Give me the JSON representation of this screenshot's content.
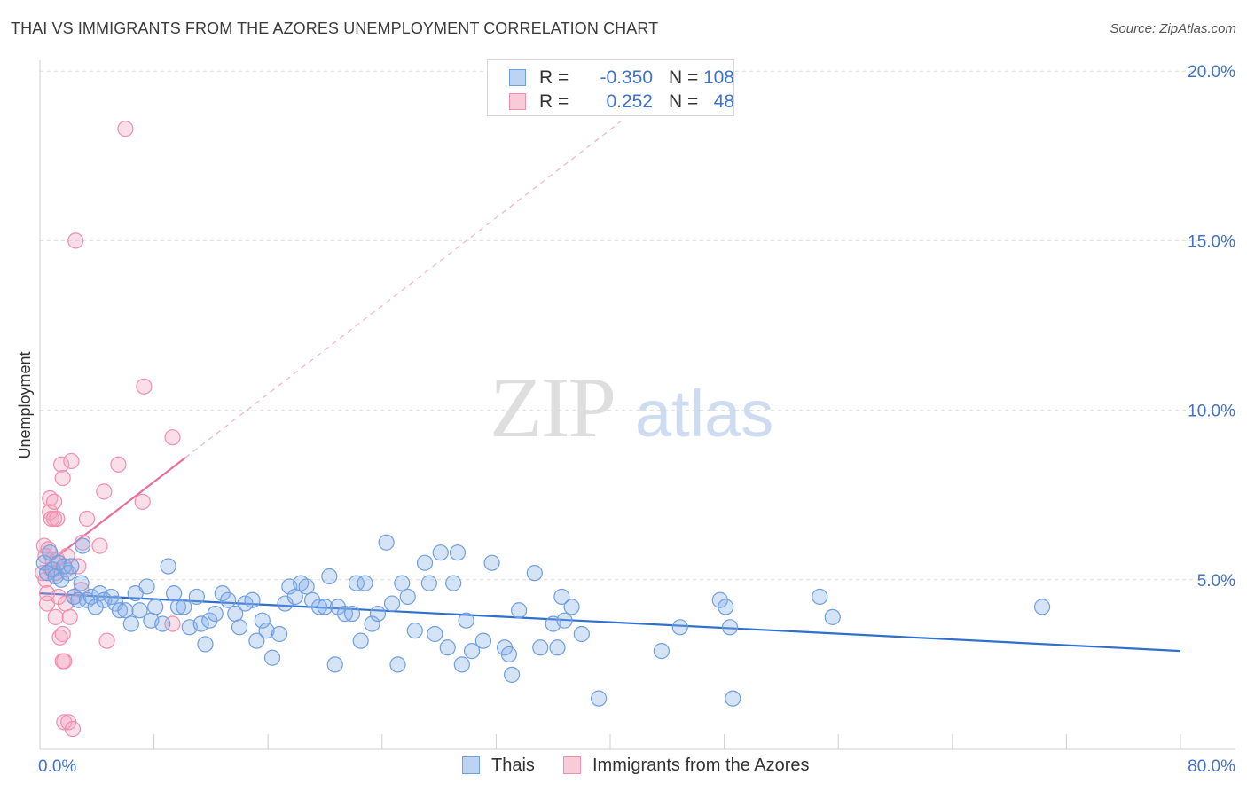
{
  "header": {
    "title": "THAI VS IMMIGRANTS FROM THE AZORES UNEMPLOYMENT CORRELATION CHART",
    "source": "Source: ZipAtlas.com"
  },
  "watermark": {
    "zip": "ZIP",
    "atlas": "atlas"
  },
  "legend": {
    "rows": [
      {
        "r_label": "R =",
        "r_value": "-0.350",
        "n_label": "N =",
        "n_value": "108",
        "color": "#6f9fe0"
      },
      {
        "r_label": "R =",
        "r_value": "0.252",
        "n_label": "N =",
        "n_value": "48",
        "color": "#f08fae"
      }
    ]
  },
  "bottom_legend": {
    "series1": "Thais",
    "series2": "Immigrants from the Azores"
  },
  "chart_data": {
    "type": "scatter",
    "title": "THAI VS IMMIGRANTS FROM THE AZORES UNEMPLOYMENT CORRELATION CHART",
    "ylabel": "Unemployment",
    "xlabel": "",
    "xlim": [
      0,
      80
    ],
    "ylim": [
      0,
      20.5
    ],
    "x_tick_labels": [
      "0.0%",
      "80.0%"
    ],
    "y_ticks": [
      5,
      10,
      15,
      20
    ],
    "y_tick_labels": [
      "5.0%",
      "10.0%",
      "15.0%",
      "20.0%"
    ],
    "grid": "horizontal dashed",
    "legend_position": "top-center",
    "colors": {
      "thais": "#6f9fe0",
      "thais_line": "#2f6fce",
      "azores": "#f08fae",
      "azores_line": "#e8709a"
    },
    "series": [
      {
        "name": "Thais",
        "r": -0.35,
        "n": 108,
        "trend": {
          "x": [
            0,
            80
          ],
          "y": [
            4.6,
            2.9
          ]
        },
        "points": [
          [
            0.3,
            5.5
          ],
          [
            0.5,
            5.2
          ],
          [
            0.7,
            5.8
          ],
          [
            0.9,
            5.3
          ],
          [
            1.1,
            5.1
          ],
          [
            1.3,
            5.5
          ],
          [
            1.5,
            5.0
          ],
          [
            1.7,
            5.4
          ],
          [
            2.0,
            5.2
          ],
          [
            2.2,
            5.4
          ],
          [
            2.4,
            4.5
          ],
          [
            2.7,
            4.4
          ],
          [
            2.9,
            4.9
          ],
          [
            3.0,
            6.0
          ],
          [
            3.3,
            4.4
          ],
          [
            3.6,
            4.5
          ],
          [
            3.9,
            4.2
          ],
          [
            4.2,
            4.6
          ],
          [
            4.5,
            4.4
          ],
          [
            5.0,
            4.5
          ],
          [
            5.3,
            4.3
          ],
          [
            5.6,
            4.1
          ],
          [
            6.0,
            4.1
          ],
          [
            6.4,
            3.7
          ],
          [
            6.7,
            4.6
          ],
          [
            7.0,
            4.1
          ],
          [
            7.5,
            4.8
          ],
          [
            7.8,
            3.8
          ],
          [
            8.1,
            4.2
          ],
          [
            8.6,
            3.7
          ],
          [
            9.0,
            5.4
          ],
          [
            9.4,
            4.6
          ],
          [
            9.7,
            4.2
          ],
          [
            10.1,
            4.2
          ],
          [
            10.5,
            3.6
          ],
          [
            11.0,
            4.5
          ],
          [
            11.3,
            3.7
          ],
          [
            11.6,
            3.1
          ],
          [
            11.9,
            3.8
          ],
          [
            12.3,
            4.0
          ],
          [
            12.8,
            4.6
          ],
          [
            13.2,
            4.4
          ],
          [
            13.7,
            4.0
          ],
          [
            14.0,
            3.6
          ],
          [
            14.4,
            4.3
          ],
          [
            14.9,
            4.4
          ],
          [
            15.2,
            3.2
          ],
          [
            15.6,
            3.8
          ],
          [
            15.9,
            3.5
          ],
          [
            16.3,
            2.7
          ],
          [
            16.8,
            3.4
          ],
          [
            17.2,
            4.3
          ],
          [
            17.5,
            4.8
          ],
          [
            17.9,
            4.5
          ],
          [
            18.3,
            4.9
          ],
          [
            18.7,
            4.8
          ],
          [
            19.1,
            4.4
          ],
          [
            19.6,
            4.2
          ],
          [
            20.0,
            4.2
          ],
          [
            20.3,
            5.1
          ],
          [
            20.7,
            2.5
          ],
          [
            20.9,
            4.2
          ],
          [
            21.4,
            4.0
          ],
          [
            21.9,
            4.0
          ],
          [
            22.2,
            4.9
          ],
          [
            22.5,
            3.2
          ],
          [
            22.8,
            4.9
          ],
          [
            23.3,
            3.7
          ],
          [
            23.7,
            4.0
          ],
          [
            24.3,
            6.1
          ],
          [
            24.7,
            4.3
          ],
          [
            25.1,
            2.5
          ],
          [
            25.4,
            4.9
          ],
          [
            25.8,
            4.5
          ],
          [
            26.3,
            3.5
          ],
          [
            27.0,
            5.5
          ],
          [
            27.3,
            4.9
          ],
          [
            27.7,
            3.4
          ],
          [
            28.1,
            5.8
          ],
          [
            28.6,
            3.0
          ],
          [
            29.0,
            4.9
          ],
          [
            29.3,
            5.8
          ],
          [
            29.6,
            2.5
          ],
          [
            29.9,
            3.8
          ],
          [
            30.3,
            2.9
          ],
          [
            31.1,
            3.2
          ],
          [
            31.7,
            5.5
          ],
          [
            32.6,
            3.0
          ],
          [
            32.9,
            2.8
          ],
          [
            33.1,
            2.2
          ],
          [
            33.6,
            4.1
          ],
          [
            34.7,
            5.2
          ],
          [
            35.1,
            3.0
          ],
          [
            36.0,
            3.7
          ],
          [
            36.3,
            3.0
          ],
          [
            36.6,
            4.5
          ],
          [
            36.8,
            3.8
          ],
          [
            37.3,
            4.2
          ],
          [
            38.0,
            3.4
          ],
          [
            39.2,
            1.5
          ],
          [
            43.6,
            2.9
          ],
          [
            44.9,
            3.6
          ],
          [
            47.7,
            4.4
          ],
          [
            48.1,
            4.2
          ],
          [
            48.4,
            3.6
          ],
          [
            48.6,
            1.5
          ],
          [
            54.7,
            4.5
          ],
          [
            55.6,
            3.9
          ],
          [
            70.3,
            4.2
          ]
        ]
      },
      {
        "name": "Immigrants from the Azores",
        "r": 0.252,
        "n": 48,
        "trend": {
          "x": [
            0,
            10.2
          ],
          "y": [
            5.3,
            8.6
          ]
        },
        "trend_extended": {
          "x": [
            10.2,
            41
          ],
          "y": [
            8.6,
            18.6
          ]
        },
        "points": [
          [
            0.2,
            5.2
          ],
          [
            0.3,
            6.0
          ],
          [
            0.4,
            5.7
          ],
          [
            0.4,
            5.0
          ],
          [
            0.5,
            4.6
          ],
          [
            0.5,
            4.3
          ],
          [
            0.6,
            5.9
          ],
          [
            0.7,
            7.4
          ],
          [
            0.7,
            7.0
          ],
          [
            0.8,
            6.8
          ],
          [
            0.8,
            5.3
          ],
          [
            0.9,
            5.6
          ],
          [
            1.0,
            7.3
          ],
          [
            1.0,
            6.8
          ],
          [
            1.1,
            5.2
          ],
          [
            1.1,
            3.9
          ],
          [
            1.2,
            6.8
          ],
          [
            1.2,
            5.6
          ],
          [
            1.3,
            4.5
          ],
          [
            1.4,
            3.3
          ],
          [
            1.5,
            8.4
          ],
          [
            1.6,
            8.0
          ],
          [
            1.6,
            3.4
          ],
          [
            1.6,
            2.6
          ],
          [
            1.7,
            2.6
          ],
          [
            1.7,
            0.8
          ],
          [
            1.8,
            4.3
          ],
          [
            1.8,
            5.3
          ],
          [
            1.9,
            5.7
          ],
          [
            2.0,
            0.8
          ],
          [
            2.1,
            3.9
          ],
          [
            2.2,
            8.5
          ],
          [
            2.3,
            0.6
          ],
          [
            2.4,
            4.5
          ],
          [
            2.5,
            15.0
          ],
          [
            2.7,
            5.4
          ],
          [
            2.9,
            4.7
          ],
          [
            3.0,
            6.1
          ],
          [
            3.3,
            6.8
          ],
          [
            4.2,
            6.0
          ],
          [
            4.5,
            7.6
          ],
          [
            4.7,
            3.2
          ],
          [
            5.5,
            8.4
          ],
          [
            6.0,
            18.3
          ],
          [
            7.2,
            7.3
          ],
          [
            7.3,
            10.7
          ],
          [
            9.3,
            9.2
          ],
          [
            9.3,
            3.7
          ]
        ]
      }
    ]
  }
}
